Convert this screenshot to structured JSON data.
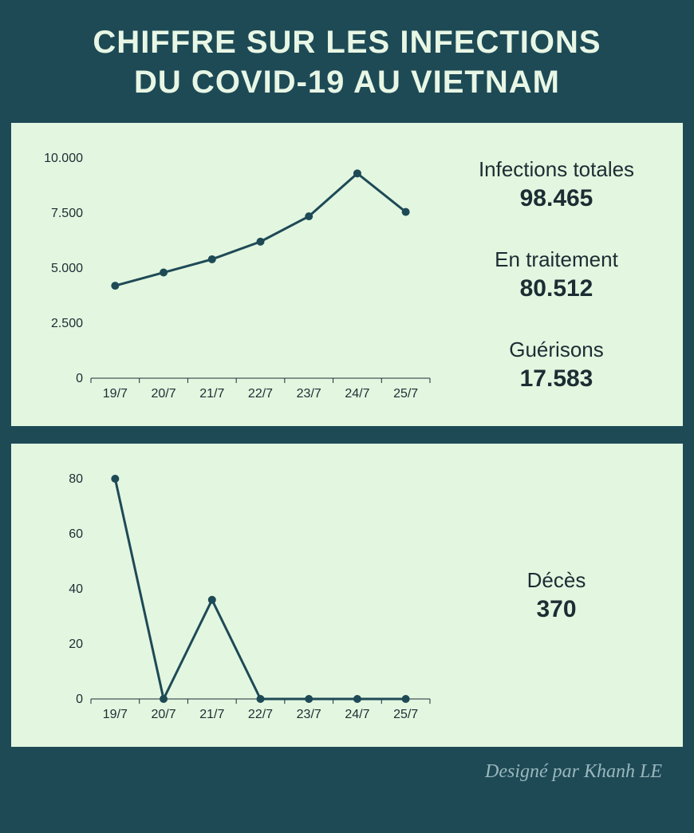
{
  "header": {
    "title_line1": "CHIFFRE SUR LES INFECTIONS",
    "title_line2": "DU COVID-19 AU VIETNAM"
  },
  "colors": {
    "page_bg": "#1e4a56",
    "panel_bg": "#e3f6e0",
    "line": "#1e4a56",
    "text": "#1c2d33",
    "header_text": "#e8f7e5",
    "footer_text": "#9ab7bd",
    "gridline": "#1c2d33"
  },
  "chart_top": {
    "type": "line",
    "categories": [
      "19/7",
      "20/7",
      "21/7",
      "22/7",
      "23/7",
      "24/7",
      "25/7"
    ],
    "values": [
      4200,
      4800,
      5400,
      6200,
      7350,
      9300,
      7550
    ],
    "ylim": [
      0,
      10000
    ],
    "yticks": [
      0,
      2500,
      5000,
      7500,
      10000
    ],
    "ytick_labels": [
      "0",
      "2.500",
      "5.000",
      "7.500",
      "10.000"
    ],
    "line_color": "#1e4a56",
    "line_width": 3,
    "marker_radius": 5,
    "axis_fontsize": 16,
    "grid": false
  },
  "chart_bottom": {
    "type": "line",
    "categories": [
      "19/7",
      "20/7",
      "21/7",
      "22/7",
      "23/7",
      "24/7",
      "25/7"
    ],
    "values": [
      80,
      0,
      36,
      0,
      0,
      0,
      0
    ],
    "ylim": [
      0,
      80
    ],
    "yticks": [
      0,
      20,
      40,
      60,
      80
    ],
    "ytick_labels": [
      "0",
      "20",
      "40",
      "60",
      "80"
    ],
    "line_color": "#1e4a56",
    "line_width": 3,
    "marker_radius": 5,
    "axis_fontsize": 16,
    "grid": false
  },
  "stats_top": [
    {
      "label": "Infections totales",
      "value": "98.465"
    },
    {
      "label": "En traitement",
      "value": "80.512"
    },
    {
      "label": "Guérisons",
      "value": "17.583"
    }
  ],
  "stats_bottom": [
    {
      "label": "Décès",
      "value": "370"
    }
  ],
  "footer": {
    "credit": "Designé par Khanh LE"
  }
}
